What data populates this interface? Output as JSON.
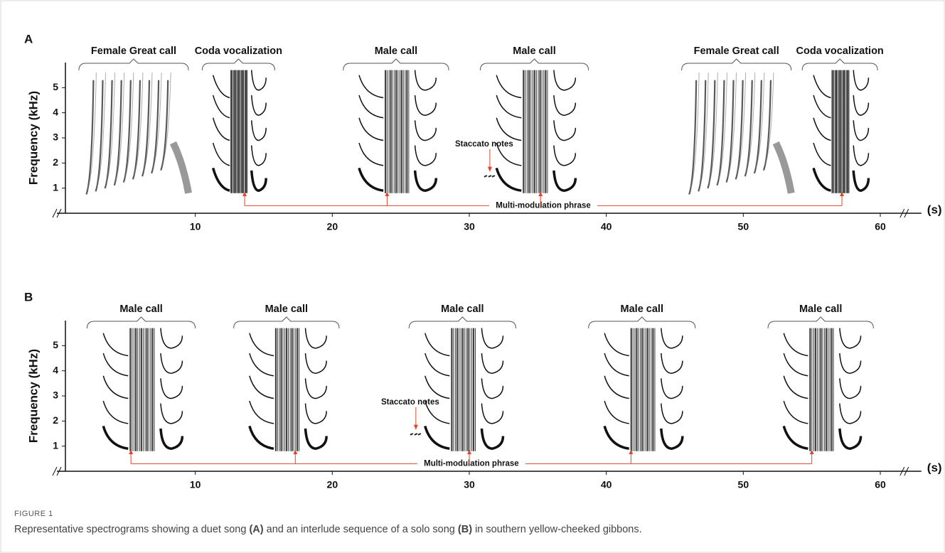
{
  "chart_data": [
    {
      "type": "spectrogram",
      "panel": "A",
      "ylabel": "Frequency (kHz)",
      "xunit": "(s)",
      "xlim": [
        0,
        63
      ],
      "ylim": [
        0,
        6
      ],
      "xticks": [
        10,
        20,
        30,
        40,
        50,
        60
      ],
      "yticks": [
        1,
        2,
        3,
        4,
        5
      ],
      "calls": [
        {
          "label": "Female Great call",
          "start": 1.5,
          "end": 9.5
        },
        {
          "label": "Coda vocalization",
          "start": 10.5,
          "end": 15.8
        },
        {
          "label": "Male call",
          "start": 20.8,
          "end": 28.5
        },
        {
          "label": "Male call",
          "start": 30.8,
          "end": 38.7
        },
        {
          "label": "Female Great call",
          "start": 45.5,
          "end": 53.5
        },
        {
          "label": "Coda vocalization",
          "start": 54.3,
          "end": 59.8
        }
      ],
      "staccato": {
        "label": "Staccato notes",
        "x": 31.5
      },
      "phrase": {
        "label": "Multi-modulation phrase",
        "x": [
          13.6,
          24,
          35.2,
          57.2
        ]
      }
    },
    {
      "type": "spectrogram",
      "panel": "B",
      "ylabel": "Frequency (kHz)",
      "xunit": "(s)",
      "xlim": [
        0,
        63
      ],
      "ylim": [
        0,
        6
      ],
      "xticks": [
        10,
        20,
        30,
        40,
        50,
        60
      ],
      "yticks": [
        1,
        2,
        3,
        4,
        5
      ],
      "calls": [
        {
          "label": "Male call",
          "start": 2.1,
          "end": 10
        },
        {
          "label": "Male call",
          "start": 12.8,
          "end": 20.5
        },
        {
          "label": "Male call",
          "start": 25.6,
          "end": 33.4
        },
        {
          "label": "Male call",
          "start": 38.7,
          "end": 46.5
        },
        {
          "label": "Male call",
          "start": 51.8,
          "end": 59.5
        }
      ],
      "staccato": {
        "label": "Staccato notes",
        "x": 26.1
      },
      "phrase": {
        "label": "Multi-modulation phrase",
        "x": [
          5.3,
          17.3,
          30,
          41.8,
          55
        ]
      }
    }
  ],
  "caption": {
    "figure_label": "FIGURE 1",
    "parts": [
      "Representative spectrograms showing a duet song ",
      "(A)",
      " and an interlude sequence of a solo song ",
      "(B)",
      " in southern yellow-cheeked gibbons."
    ]
  }
}
